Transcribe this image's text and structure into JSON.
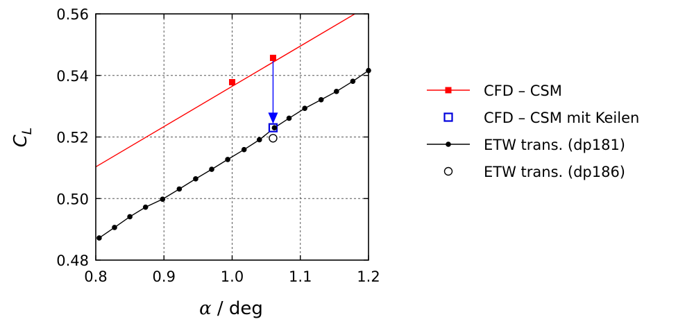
{
  "chart_data": {
    "type": "scatter",
    "xlabel": {
      "symbol": "α",
      "rest": " / deg"
    },
    "ylabel": {
      "main": "C",
      "sub": "L"
    },
    "xlim": [
      0.8,
      1.2
    ],
    "ylim": [
      0.48,
      0.56
    ],
    "xticks": [
      "0.8",
      "0.9",
      "1.0",
      "1.1",
      "1.2"
    ],
    "yticks": [
      "0.48",
      "0.50",
      "0.52",
      "0.54",
      "0.56"
    ],
    "grid": true,
    "legend_position": "right",
    "series": [
      {
        "name": "CFD – CSM",
        "color": "#ff0000",
        "marker": "filled-square",
        "line": true,
        "line_extent": {
          "x": [
            0.8,
            1.18
          ],
          "y": [
            0.5103,
            0.56
          ]
        },
        "points": [
          [
            1.0,
            0.5378
          ],
          [
            1.06,
            0.5457
          ]
        ]
      },
      {
        "name": "CFD – CSM mit Keilen",
        "color": "#0000dd",
        "marker": "open-square",
        "line": false,
        "points": [
          [
            1.06,
            0.523
          ]
        ]
      },
      {
        "name": "ETW trans. (dp181)",
        "color": "#000000",
        "marker": "filled-circle",
        "line": true,
        "points": [
          [
            0.805,
            0.4872
          ],
          [
            0.8275,
            0.4906
          ],
          [
            0.85,
            0.4941
          ],
          [
            0.873,
            0.4972
          ],
          [
            0.898,
            0.4998
          ],
          [
            0.9225,
            0.5031
          ],
          [
            0.9465,
            0.5064
          ],
          [
            0.97,
            0.5095
          ],
          [
            0.9935,
            0.5127
          ],
          [
            1.0175,
            0.5159
          ],
          [
            1.04,
            0.5191
          ],
          [
            1.062,
            0.523
          ],
          [
            1.0835,
            0.5261
          ],
          [
            1.1065,
            0.5293
          ],
          [
            1.1305,
            0.5321
          ],
          [
            1.153,
            0.5348
          ],
          [
            1.177,
            0.5381
          ],
          [
            1.2,
            0.5416
          ]
        ]
      },
      {
        "name": "ETW trans. (dp186)",
        "color": "#000000",
        "marker": "open-circle",
        "line": false,
        "points": [
          [
            1.06,
            0.5196
          ]
        ]
      }
    ],
    "annotation_arrow": {
      "color": "#0000ff",
      "from": [
        1.06,
        0.5457
      ],
      "to": [
        1.06,
        0.5243
      ]
    }
  }
}
